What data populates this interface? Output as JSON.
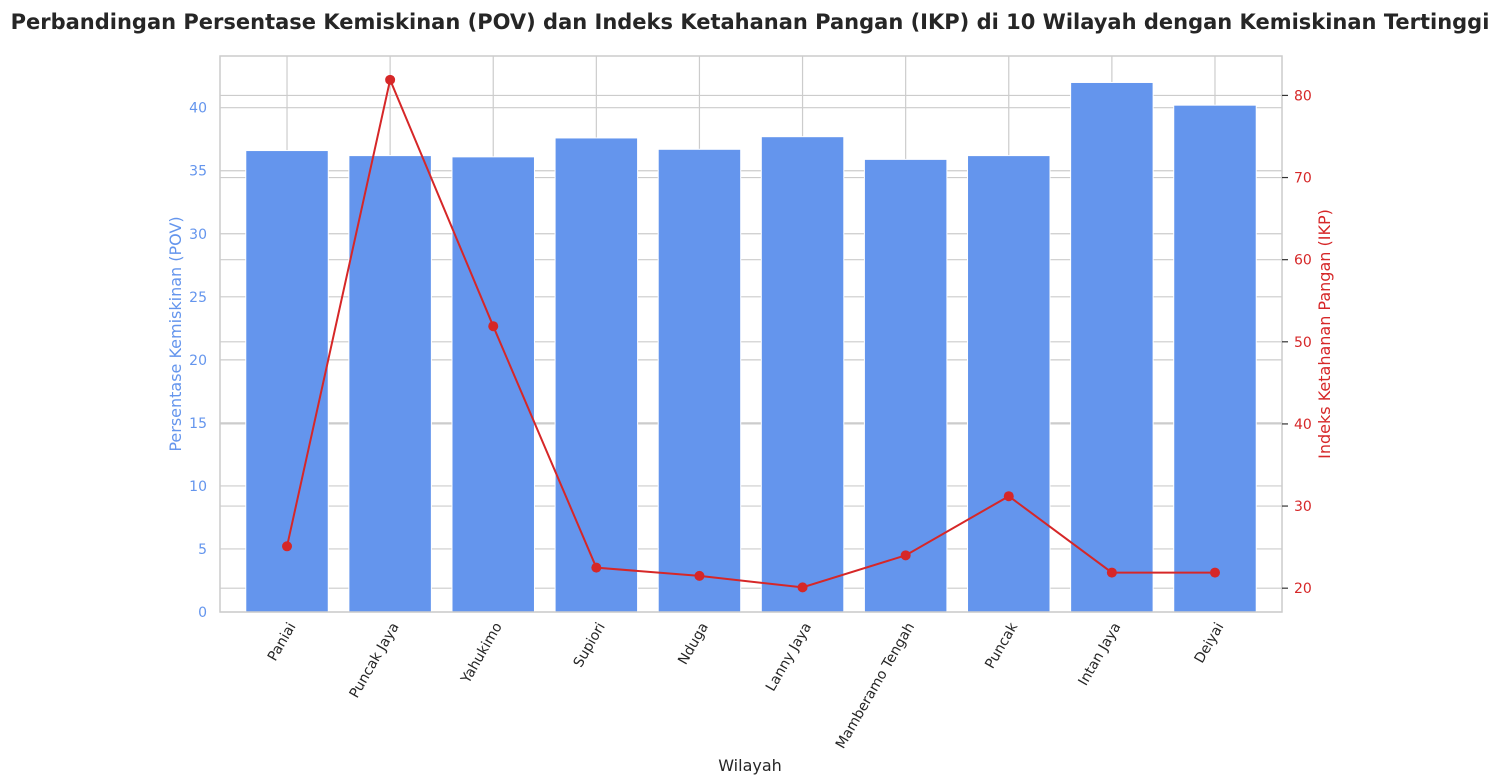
{
  "chart_data": {
    "type": "bar",
    "title": "Perbandingan Persentase Kemiskinan (POV) dan Indeks Ketahanan Pangan (IKP) di 10 Wilayah dengan Kemiskinan Tertinggi",
    "xlabel": "Wilayah",
    "categories": [
      "Paniai",
      "Puncak Jaya",
      "Yahukimo",
      "Supiori",
      "Nduga",
      "Lanny Jaya",
      "Mamberamo Tengah",
      "Puncak",
      "Intan Jaya",
      "Deiyai"
    ],
    "series": [
      {
        "name": "Persentase Kemiskinan (POV)",
        "type": "bar",
        "axis": "left",
        "color": "#6495ED",
        "values": [
          36.6,
          36.2,
          36.1,
          37.6,
          36.7,
          37.7,
          35.9,
          36.2,
          42.0,
          40.2
        ]
      },
      {
        "name": "Indeks Ketahanan Pangan (IKP)",
        "type": "line",
        "axis": "right",
        "color": "#D62728",
        "values": [
          25.1,
          81.9,
          51.9,
          22.5,
          21.5,
          20.1,
          24.0,
          31.2,
          21.9,
          21.9
        ]
      }
    ],
    "y_left": {
      "label": "Persentase Kemiskinan (POV)",
      "ylim": [
        0,
        44.1
      ],
      "ticks": [
        0,
        5,
        10,
        15,
        20,
        25,
        30,
        35,
        40
      ],
      "color": "#6495ED"
    },
    "y_right": {
      "label": "Indeks Ketahanan Pangan (IKP)",
      "ylim": [
        17.1,
        84.8
      ],
      "ticks": [
        20,
        30,
        40,
        50,
        60,
        70,
        80
      ],
      "color": "#D62728"
    },
    "grid": true,
    "tick_rotation": 60
  }
}
